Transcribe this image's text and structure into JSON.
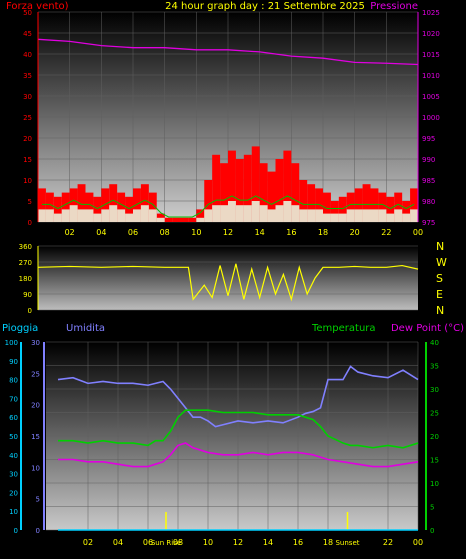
{
  "header": {
    "left_title": "Forza vento)",
    "center_title": "24 hour graph day : 21 Settembre 2025",
    "right_title": "Pressione"
  },
  "colors": {
    "wind": "#ff0000",
    "gust_fill": "#ff0000",
    "avg_speed": "#ffffff",
    "wind_green": "#00c000",
    "pressure": "#e000e0",
    "direction": "#ffff00",
    "temperature": "#00d000",
    "humidity": "#8080ff",
    "dewpoint": "#e000e0",
    "rain": "#00d0ff",
    "grid": "#606060",
    "text_main": "#ffff00"
  },
  "direction_labels": [
    "N",
    "W",
    "S",
    "E",
    "N"
  ],
  "bottom_header": {
    "rain_label": "Pioggia",
    "humidity_label": "Umidita",
    "temperature_label": "Temperatura",
    "dewpoint_label": "Dew Point (°C)"
  },
  "chart_data": [
    {
      "type": "bar",
      "name_key": "wind",
      "x_ticks": [
        "02",
        "04",
        "06",
        "08",
        "10",
        "12",
        "14",
        "16",
        "18",
        "20",
        "22",
        "00"
      ],
      "left_axis_ticks": [
        0,
        5,
        10,
        15,
        20,
        25,
        30,
        35,
        40,
        45,
        50
      ],
      "right_axis_ticks": [
        975,
        980,
        985,
        990,
        995,
        1000,
        1005,
        1010,
        1015,
        1020,
        1025
      ],
      "ylim_left": [
        0,
        50
      ],
      "ylim_right": [
        975,
        1025
      ],
      "series": [
        {
          "kind": "gust",
          "x": [
            0.5,
            1.0,
            1.5,
            2.0,
            2.5,
            3.0,
            3.5,
            4.0,
            4.5,
            5.0,
            5.5,
            6.0,
            6.5,
            7.0,
            7.5,
            8.0,
            8.5,
            9.0,
            9.5,
            10.0,
            10.5,
            11.0,
            11.5,
            12.0,
            12.5,
            13.0,
            13.5,
            14.0,
            14.5,
            15.0,
            15.5,
            16.0,
            16.5,
            17.0,
            17.5,
            18.0,
            18.5,
            19.0,
            19.5,
            20.0,
            20.5,
            21.0,
            21.5,
            22.0,
            22.5,
            23.0,
            23.5,
            24.0
          ],
          "values": [
            8,
            7,
            6,
            7,
            8,
            9,
            7,
            6,
            8,
            9,
            7,
            6,
            8,
            9,
            7,
            2,
            1,
            1,
            1,
            1,
            3,
            10,
            16,
            14,
            17,
            15,
            16,
            18,
            14,
            12,
            15,
            17,
            14,
            10,
            9,
            8,
            7,
            5,
            6,
            7,
            8,
            9,
            8,
            7,
            6,
            7,
            5,
            8
          ]
        },
        {
          "kind": "avg",
          "x": [
            0.5,
            1.0,
            1.5,
            2.0,
            2.5,
            3.0,
            3.5,
            4.0,
            4.5,
            5.0,
            5.5,
            6.0,
            6.5,
            7.0,
            7.5,
            8.0,
            8.5,
            9.0,
            9.5,
            10.0,
            10.5,
            11.0,
            11.5,
            12.0,
            12.5,
            13.0,
            13.5,
            14.0,
            14.5,
            15.0,
            15.5,
            16.0,
            16.5,
            17.0,
            17.5,
            18.0,
            18.5,
            19.0,
            19.5,
            20.0,
            20.5,
            21.0,
            21.5,
            22.0,
            22.5,
            23.0,
            23.5,
            24.0
          ],
          "values": [
            3,
            3,
            2,
            3,
            4,
            3,
            3,
            2,
            3,
            4,
            3,
            2,
            3,
            4,
            3,
            1,
            0,
            0,
            0,
            0,
            1,
            3,
            4,
            4,
            5,
            4,
            4,
            5,
            4,
            3,
            4,
            5,
            4,
            3,
            3,
            3,
            2,
            2,
            2,
            3,
            3,
            3,
            3,
            3,
            2,
            3,
            2,
            3
          ]
        },
        {
          "kind": "pressure",
          "x": [
            0,
            2,
            4,
            6,
            8,
            10,
            12,
            14,
            16,
            18,
            20,
            22,
            24
          ],
          "values": [
            1018.5,
            1018,
            1017,
            1016.5,
            1016.5,
            1016,
            1016,
            1015.5,
            1014.5,
            1014,
            1013,
            1012.8,
            1012.5
          ]
        }
      ]
    },
    {
      "type": "line",
      "name_key": "direction",
      "y_ticks": [
        0,
        90,
        180,
        270,
        360
      ],
      "ylim": [
        0,
        360
      ],
      "x": [
        0,
        2,
        4,
        6,
        8,
        9.5,
        9.8,
        10.5,
        11,
        11.5,
        12,
        12.5,
        13,
        13.5,
        14,
        14.5,
        15,
        15.5,
        16,
        16.5,
        17,
        17.5,
        18,
        19,
        20,
        21,
        22,
        23,
        24
      ],
      "values": [
        240,
        245,
        240,
        245,
        240,
        240,
        60,
        140,
        70,
        250,
        80,
        260,
        60,
        230,
        70,
        240,
        90,
        200,
        60,
        240,
        90,
        180,
        240,
        240,
        245,
        240,
        240,
        250,
        230
      ]
    },
    {
      "type": "line",
      "name_key": "climate",
      "x_ticks": [
        "02",
        "04",
        "06",
        "08",
        "Sun Rise",
        "10",
        "12",
        "14",
        "16",
        "18",
        "Sunset",
        "22",
        "00"
      ],
      "rain_axis_ticks": [
        0,
        10,
        20,
        30,
        40,
        50,
        60,
        70,
        80,
        90,
        100
      ],
      "humidity_axis_ticks": [
        0,
        5,
        10,
        15,
        20,
        25,
        30
      ],
      "temp_axis_ticks": [
        0,
        5,
        10,
        15,
        20,
        25,
        30,
        35,
        40
      ],
      "ylim_rain": [
        0,
        100
      ],
      "ylim_temp": [
        0,
        40
      ],
      "events": [
        {
          "label": "Sun Rise",
          "hour": 7.2
        },
        {
          "label": "Sunset",
          "hour": 19.3
        }
      ],
      "series": [
        {
          "name": "Umidita",
          "x": [
            0,
            1,
            2,
            3,
            4,
            5,
            6,
            7,
            7.5,
            8,
            8.5,
            9,
            9.5,
            10,
            10.5,
            11,
            12,
            13,
            14,
            15,
            16,
            16.5,
            17,
            17.5,
            18,
            19,
            19.5,
            20,
            21,
            22,
            23,
            24
          ],
          "values": [
            80,
            81,
            78,
            79,
            78,
            78,
            77,
            79,
            75,
            70,
            65,
            60,
            60,
            58,
            55,
            56,
            58,
            57,
            58,
            57,
            60,
            62,
            63,
            65,
            80,
            80,
            87,
            84,
            82,
            81,
            85,
            80
          ]
        },
        {
          "name": "Temperatura",
          "x": [
            0,
            1,
            2,
            3,
            4,
            5,
            6,
            6.5,
            7,
            7.5,
            8,
            8.5,
            9,
            10,
            11,
            12,
            13,
            14,
            15,
            16,
            17,
            17.5,
            18,
            19,
            19.5,
            20,
            21,
            22,
            23,
            24
          ],
          "values": [
            19,
            19,
            18.5,
            19,
            18.5,
            18.5,
            18,
            19,
            19,
            21,
            24,
            25.5,
            25.5,
            25.5,
            25,
            25,
            25,
            24.5,
            24.5,
            24.5,
            23.5,
            22,
            20,
            18.5,
            18,
            18,
            17.5,
            18,
            17.5,
            18.5
          ]
        },
        {
          "name": "Dew Point (°C)",
          "x": [
            0,
            1,
            2,
            3,
            4,
            5,
            6,
            6.5,
            7,
            7.5,
            8,
            8.5,
            9,
            10,
            11,
            12,
            13,
            14,
            15,
            16,
            17,
            18,
            19,
            20,
            21,
            22,
            23,
            24
          ],
          "values": [
            15,
            15,
            14.5,
            14.5,
            14,
            13.5,
            13.5,
            14,
            14.5,
            16,
            18,
            18.5,
            17.5,
            16.5,
            16,
            16,
            16.5,
            16,
            16.5,
            16.5,
            16,
            15,
            14.5,
            14,
            13.5,
            13.5,
            14,
            14.5
          ]
        },
        {
          "name": "Pioggia",
          "x": [
            0,
            24
          ],
          "values": [
            0,
            0
          ]
        }
      ]
    }
  ]
}
